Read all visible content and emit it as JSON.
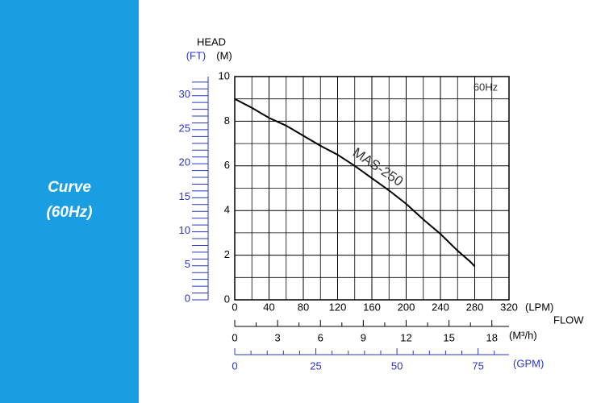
{
  "sidebar": {
    "line1": "Curve",
    "line2": "(60Hz)"
  },
  "chart_data": {
    "type": "line",
    "head_label": "HEAD",
    "y2_label": "(FT)",
    "y_label": "(M)",
    "annotation": "60Hz",
    "x_label": "(LPM)",
    "flow_label": "FLOW",
    "series": [
      {
        "name": "MAS-250",
        "color": "#000000",
        "x": [
          0,
          20,
          40,
          60,
          80,
          100,
          120,
          140,
          160,
          180,
          200,
          220,
          240,
          260,
          275,
          280
        ],
        "values": [
          9.0,
          8.6,
          8.15,
          7.8,
          7.35,
          6.9,
          6.5,
          6.0,
          5.45,
          4.9,
          4.3,
          3.6,
          2.95,
          2.2,
          1.7,
          1.5
        ]
      }
    ],
    "xlim": [
      0,
      320
    ],
    "xticks": [
      0,
      40,
      80,
      120,
      160,
      200,
      240,
      280,
      320
    ],
    "ylim": [
      0,
      10
    ],
    "yticks": [
      0,
      2,
      4,
      6,
      8,
      10
    ],
    "y2lim": [
      0,
      32.81
    ],
    "y2ticks": [
      0,
      5,
      10,
      15,
      20,
      25,
      30
    ],
    "y2_color": "#2a35c9",
    "grid": true,
    "m3h_axis": {
      "label": "(M³/h)",
      "xlim": [
        0,
        19.2
      ],
      "xticks": [
        0,
        3,
        6,
        9,
        12,
        15,
        18
      ]
    },
    "gpm_axis": {
      "label": "(GPM)",
      "xlim": [
        0,
        84.54
      ],
      "xticks": [
        0,
        25,
        50,
        75
      ],
      "color": "#2a35c9"
    }
  }
}
